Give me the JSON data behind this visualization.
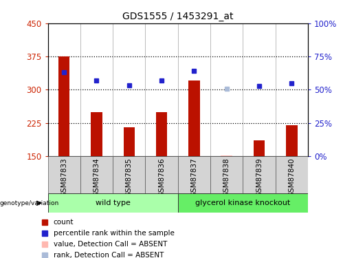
{
  "title": "GDS1555 / 1453291_at",
  "samples": [
    "GSM87833",
    "GSM87834",
    "GSM87835",
    "GSM87836",
    "GSM87837",
    "GSM87838",
    "GSM87839",
    "GSM87840"
  ],
  "bar_values": [
    375,
    250,
    215,
    250,
    320,
    152,
    185,
    220
  ],
  "bar_baseline": 150,
  "bar_absent": [
    false,
    false,
    false,
    false,
    false,
    true,
    false,
    false
  ],
  "rank_values": [
    340,
    320,
    310,
    320,
    342,
    302,
    308,
    315
  ],
  "rank_absent": [
    false,
    false,
    false,
    false,
    false,
    true,
    false,
    false
  ],
  "bar_color_normal": "#BB1100",
  "bar_color_absent": "#FFB8B0",
  "rank_color_normal": "#2222CC",
  "rank_color_absent": "#AABBD8",
  "ylim_left": [
    150,
    450
  ],
  "ylim_right": [
    0,
    100
  ],
  "yticks_left": [
    150,
    225,
    300,
    375,
    450
  ],
  "yticks_right": [
    0,
    25,
    50,
    75,
    100
  ],
  "ytick_labels_right": [
    "0%",
    "25%",
    "50%",
    "75%",
    "100%"
  ],
  "hlines": [
    225,
    300,
    375
  ],
  "groups": [
    {
      "label": "wild type",
      "start": 0,
      "end": 4,
      "color": "#AAFFAA"
    },
    {
      "label": "glycerol kinase knockout",
      "start": 4,
      "end": 8,
      "color": "#66EE66"
    }
  ],
  "group_label_prefix": "genotype/variation",
  "legend_items": [
    {
      "label": "count",
      "color": "#BB1100"
    },
    {
      "label": "percentile rank within the sample",
      "color": "#2222CC"
    },
    {
      "label": "value, Detection Call = ABSENT",
      "color": "#FFB8B0"
    },
    {
      "label": "rank, Detection Call = ABSENT",
      "color": "#AABBD8"
    }
  ],
  "bar_width": 0.35,
  "plot_bg": "#FFFFFF",
  "left_tick_color": "#CC2200",
  "right_tick_color": "#2222CC"
}
